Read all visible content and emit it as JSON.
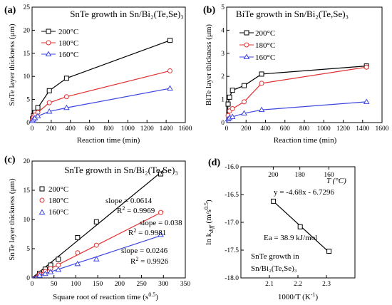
{
  "chart_data": [
    {
      "panel": "(a)",
      "type": "line",
      "title": "SnTe growth in Sn/Bi₂(Te,Se)₃",
      "xlabel": "Reaction time (min)",
      "ylabel": "SnTe layer thickness (μm)",
      "xlim": [
        0,
        1600
      ],
      "ylim": [
        0,
        25
      ],
      "xticks": [
        "0",
        "200",
        "400",
        "600",
        "800",
        "1000",
        "1200",
        "1400",
        "1600"
      ],
      "yticks": [
        "0",
        "5",
        "10",
        "15",
        "20",
        "25"
      ],
      "legend_position": "top-left",
      "series": [
        {
          "name": "200°C",
          "color": "#000000",
          "marker": "square",
          "x": [
            0,
            5,
            15,
            30,
            60,
            180,
            360,
            1440
          ],
          "y": [
            0,
            0.8,
            1.5,
            2.2,
            3.2,
            6.9,
            9.6,
            17.8
          ]
        },
        {
          "name": "180°C",
          "color": "#e03030",
          "marker": "circle",
          "x": [
            0,
            5,
            15,
            30,
            60,
            180,
            360,
            1440
          ],
          "y": [
            0,
            0.6,
            1.1,
            1.6,
            2.2,
            4.3,
            5.6,
            11.2
          ]
        },
        {
          "name": "160°C",
          "color": "#3c46e0",
          "marker": "triangle",
          "x": [
            0,
            5,
            15,
            30,
            60,
            180,
            360,
            1440
          ],
          "y": [
            0,
            0.4,
            0.7,
            1.0,
            1.4,
            2.4,
            3.2,
            7.4
          ]
        }
      ]
    },
    {
      "panel": "(b)",
      "type": "line",
      "title": "BiTe growth in Sn/Bi₂(Te,Se)₃",
      "xlabel": "Reaction time (min)",
      "ylabel": "BiTe layer thickness (μm)",
      "xlim": [
        0,
        1600
      ],
      "ylim": [
        0,
        5
      ],
      "xticks": [
        "0",
        "200",
        "400",
        "600",
        "800",
        "1000",
        "1200",
        "1400",
        "1600"
      ],
      "yticks": [
        "0",
        "1",
        "2",
        "3",
        "4",
        "5"
      ],
      "legend_position": "top-center",
      "series": [
        {
          "name": "200°C",
          "color": "#000000",
          "marker": "square",
          "x": [
            0,
            15,
            30,
            60,
            180,
            360,
            1440
          ],
          "y": [
            0,
            0.8,
            1.1,
            1.4,
            1.6,
            2.1,
            2.45
          ]
        },
        {
          "name": "180°C",
          "color": "#e03030",
          "marker": "circle",
          "x": [
            0,
            15,
            30,
            60,
            180,
            360,
            1440
          ],
          "y": [
            0,
            0.3,
            0.5,
            0.6,
            0.9,
            1.7,
            2.4
          ]
        },
        {
          "name": "160°C",
          "color": "#3c46e0",
          "marker": "triangle",
          "x": [
            0,
            15,
            30,
            60,
            180,
            360,
            1440
          ],
          "y": [
            0,
            0.15,
            0.2,
            0.25,
            0.4,
            0.55,
            0.9
          ]
        }
      ]
    },
    {
      "panel": "(c)",
      "type": "scatter",
      "title": "SnTe growth in Sn/Bi₂(Te,Se)₃",
      "xlabel": "Square root of reaction time (s",
      "xlabel_sup": "0.5",
      "xlabel_end": ")",
      "ylabel": "SnTe layer thickness (μm)",
      "xlim": [
        0,
        350
      ],
      "ylim": [
        0,
        20
      ],
      "xticks": [
        "0",
        "50",
        "100",
        "150",
        "200",
        "250",
        "300",
        "350"
      ],
      "yticks": [
        "0",
        "5",
        "10",
        "15",
        "20"
      ],
      "legend_position": "top-left",
      "series": [
        {
          "name": "200°C",
          "color": "#000000",
          "marker": "square",
          "x": [
            17.3,
            30,
            42.4,
            60,
            103.9,
            147,
            293.9
          ],
          "y": [
            0.8,
            1.5,
            2.2,
            3.2,
            6.9,
            9.6,
            17.8
          ]
        },
        {
          "name": "180°C",
          "color": "#e03030",
          "marker": "circle",
          "x": [
            17.3,
            30,
            42.4,
            60,
            103.9,
            147,
            293.9
          ],
          "y": [
            0.6,
            1.1,
            1.6,
            2.2,
            4.3,
            5.6,
            11.2
          ]
        },
        {
          "name": "160°C",
          "color": "#3c46e0",
          "marker": "triangle",
          "x": [
            17.3,
            30,
            42.4,
            60,
            103.9,
            147,
            293.9
          ],
          "y": [
            0.4,
            0.7,
            1.0,
            1.4,
            2.4,
            3.2,
            7.4
          ]
        }
      ],
      "fits": [
        {
          "slope": 0.0614,
          "color": "#000000",
          "slope_label": "slope = 0.0614",
          "r2_label": "R",
          "r2_value": " = 0.9969"
        },
        {
          "slope": 0.038,
          "color": "#e03030",
          "slope_label": "slope = 0.038",
          "r2_label": "R",
          "r2_value": " = 0.9981"
        },
        {
          "slope": 0.0246,
          "color": "#3c46e0",
          "slope_label": "slope = 0.0246",
          "r2_label": "R",
          "r2_value": " = 0.9926"
        }
      ]
    },
    {
      "panel": "(d)",
      "type": "scatter",
      "xlabel": "1000/T (K",
      "xlabel_sup": "-1",
      "xlabel_end": ")",
      "ylabel_pre": "ln k",
      "ylabel_sub": "diff",
      "ylabel_unit": " (m/s",
      "ylabel_sup": "0.5",
      "ylabel_end": ")",
      "top_axis_label": "T (°C)",
      "top_ticks": [
        "200",
        "180",
        "160"
      ],
      "xlim": [
        2.0,
        2.4
      ],
      "ylim": [
        -18.0,
        -16.0
      ],
      "xticks": [
        "2.1",
        "2.2",
        "2.3"
      ],
      "yticks": [
        "-16.0",
        "-16.5",
        "-17.0",
        "-17.5",
        "-18.0"
      ],
      "points": {
        "x": [
          2.114,
          2.208,
          2.309
        ],
        "y": [
          -16.62,
          -17.08,
          -17.52
        ]
      },
      "fit_label": "y = -4.68x - 6.7296",
      "ea_label": "Ea = 38.9 kJ/mol",
      "caption_1": "SnTe growth in",
      "caption_2": "Sn/Bi₂(Te,Se)₃"
    }
  ]
}
